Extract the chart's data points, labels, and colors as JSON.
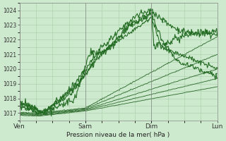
{
  "xlabel": "Pression niveau de la mer( hPa )",
  "ylim": [
    1016.5,
    1024.5
  ],
  "yticks": [
    1017,
    1018,
    1019,
    1020,
    1021,
    1022,
    1023,
    1024
  ],
  "xtick_labels": [
    "Ven",
    "Sam",
    "Dim",
    "Lun"
  ],
  "xtick_positions": [
    0.0,
    0.333,
    0.667,
    1.0
  ],
  "bg_color": "#ceeace",
  "grid_color": "#a8cca8",
  "line_dark": "#1a5c1a",
  "line_mid": "#236b23",
  "total_points": 300
}
